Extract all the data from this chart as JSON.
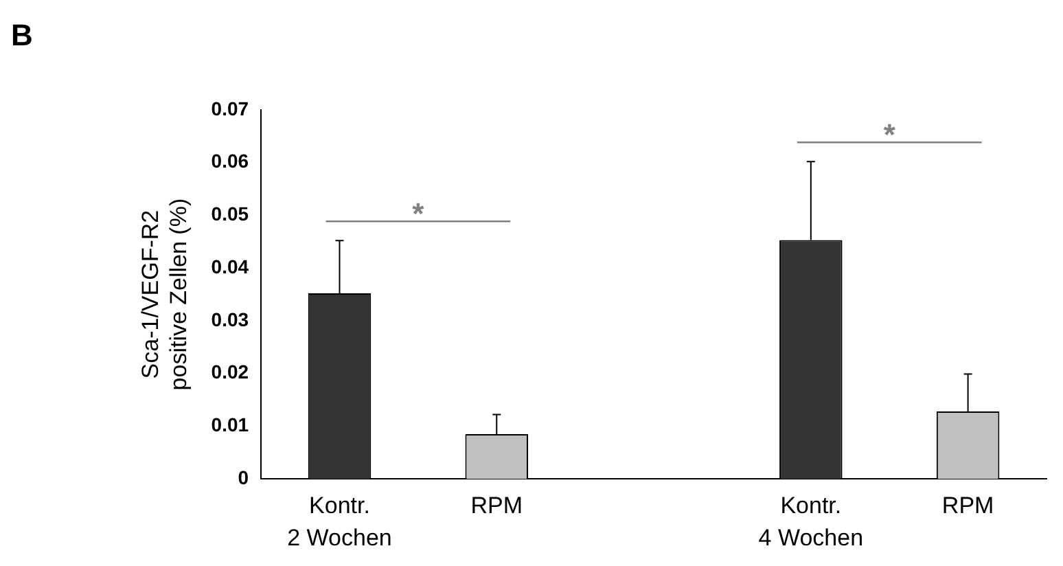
{
  "chart_data": {
    "type": "bar",
    "ylabel": "Sca-1/VEGF-R2\npositive Zellen (%)",
    "categories": [
      "Kontr.",
      "RPM",
      null,
      "Kontr.",
      "RPM"
    ],
    "values": [
      0.0352,
      0.0085,
      null,
      0.0453,
      0.0128
    ],
    "colors": [
      "#333333",
      "#c0c0c0",
      "#c0c0c0",
      "#333333",
      "#c0c0c0"
    ],
    "errors": [
      [
        0.0352,
        0.0452
      ],
      [
        0.0085,
        0.0122
      ],
      null,
      [
        0.0453,
        0.0602
      ],
      [
        0.0128,
        0.0199
      ]
    ],
    "ylim": [
      0,
      0.07
    ],
    "yticks": [
      0,
      0.01,
      0.02,
      0.03,
      0.04,
      0.05,
      0.06,
      0.07
    ],
    "grid": false,
    "annotations": [
      "B",
      "2 Wochen",
      "4 Wochen",
      "*",
      "*"
    ]
  }
}
